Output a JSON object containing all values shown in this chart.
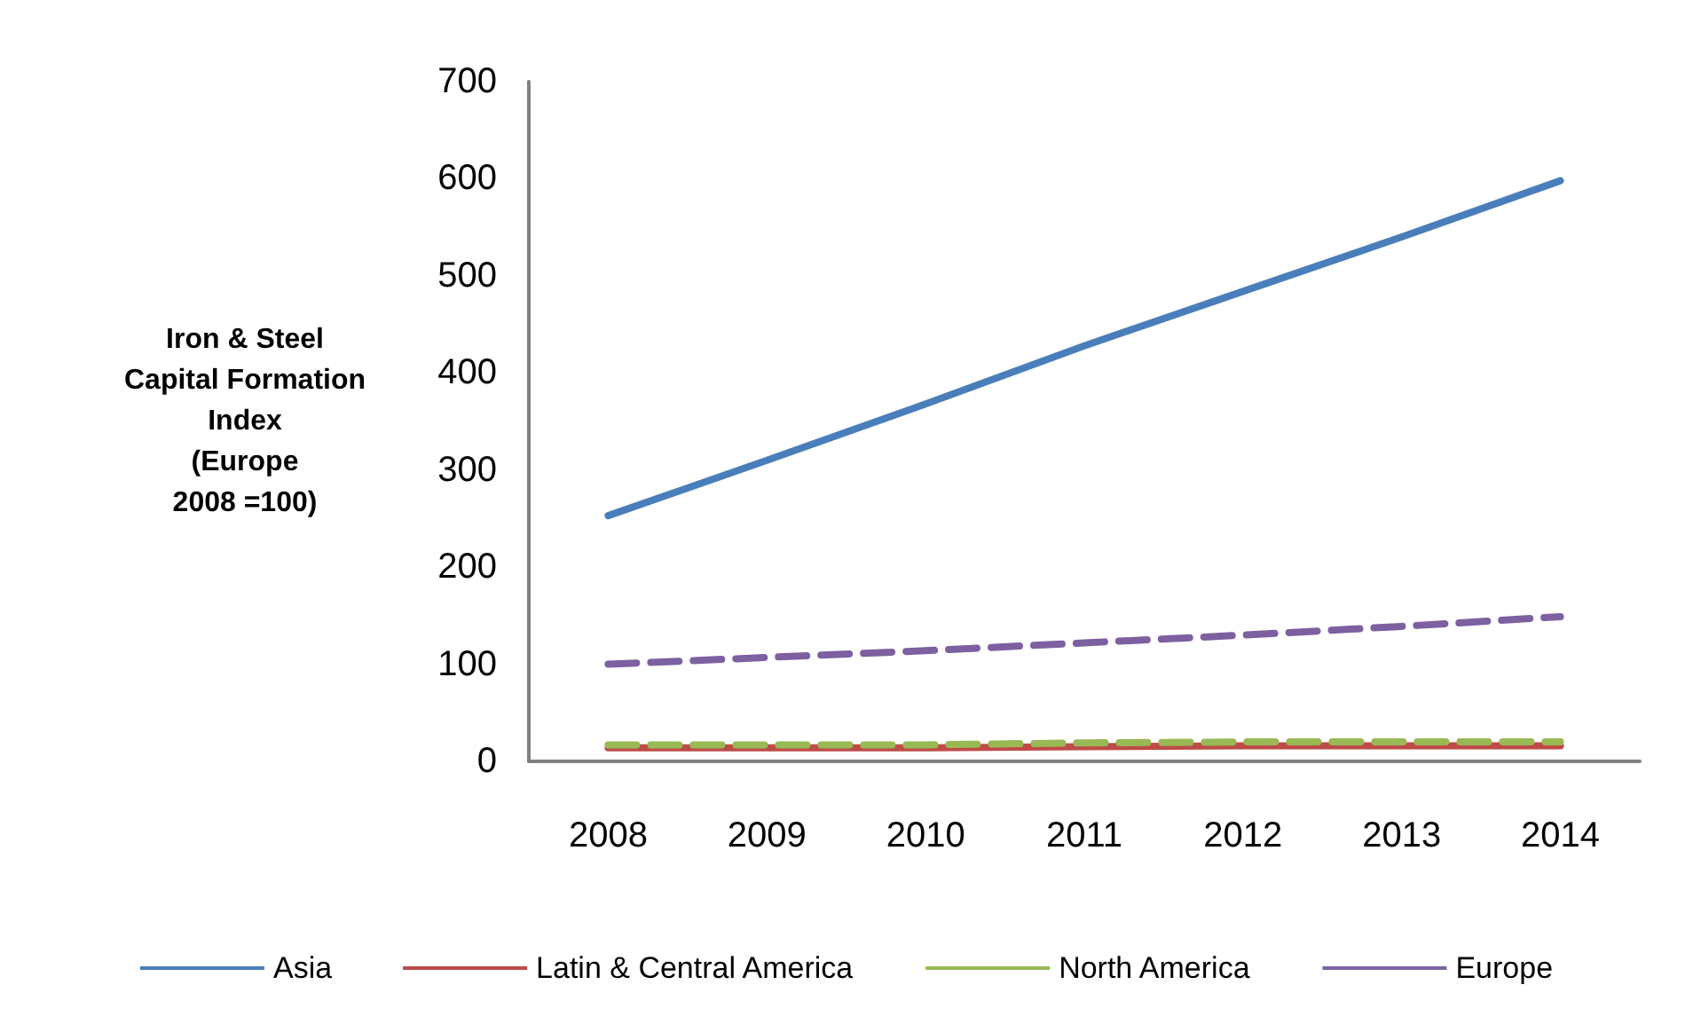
{
  "chart_data": {
    "type": "line",
    "ylabel": "Iron & Steel\nCapital Formation\nIndex\n(Europe\n2008 =100)",
    "categories": [
      "2008",
      "2009",
      "2010",
      "2011",
      "2012",
      "2013",
      "2014"
    ],
    "series": [
      {
        "name": "Asia",
        "color": "#4a7ebb",
        "line_style": "solid",
        "values": [
          253,
          310,
          368,
          428,
          484,
          540,
          598
        ]
      },
      {
        "name": "Latin & Central America",
        "color": "#be4b48",
        "line_style": "solid",
        "values": [
          14,
          14,
          14,
          15,
          16,
          16,
          16
        ]
      },
      {
        "name": "North America",
        "color": "#98b954",
        "line_style": "dashed",
        "values": [
          17,
          17,
          17,
          19,
          20,
          20,
          20
        ]
      },
      {
        "name": "Europe",
        "color": "#7d60a0",
        "line_style": "dashed",
        "values": [
          100,
          107,
          114,
          122,
          130,
          139,
          149
        ]
      }
    ],
    "ylim": [
      0,
      700
    ],
    "yticks": [
      0,
      100,
      200,
      300,
      400,
      500,
      600,
      700
    ],
    "grid": false,
    "legend": "bottom",
    "marker": "none"
  }
}
